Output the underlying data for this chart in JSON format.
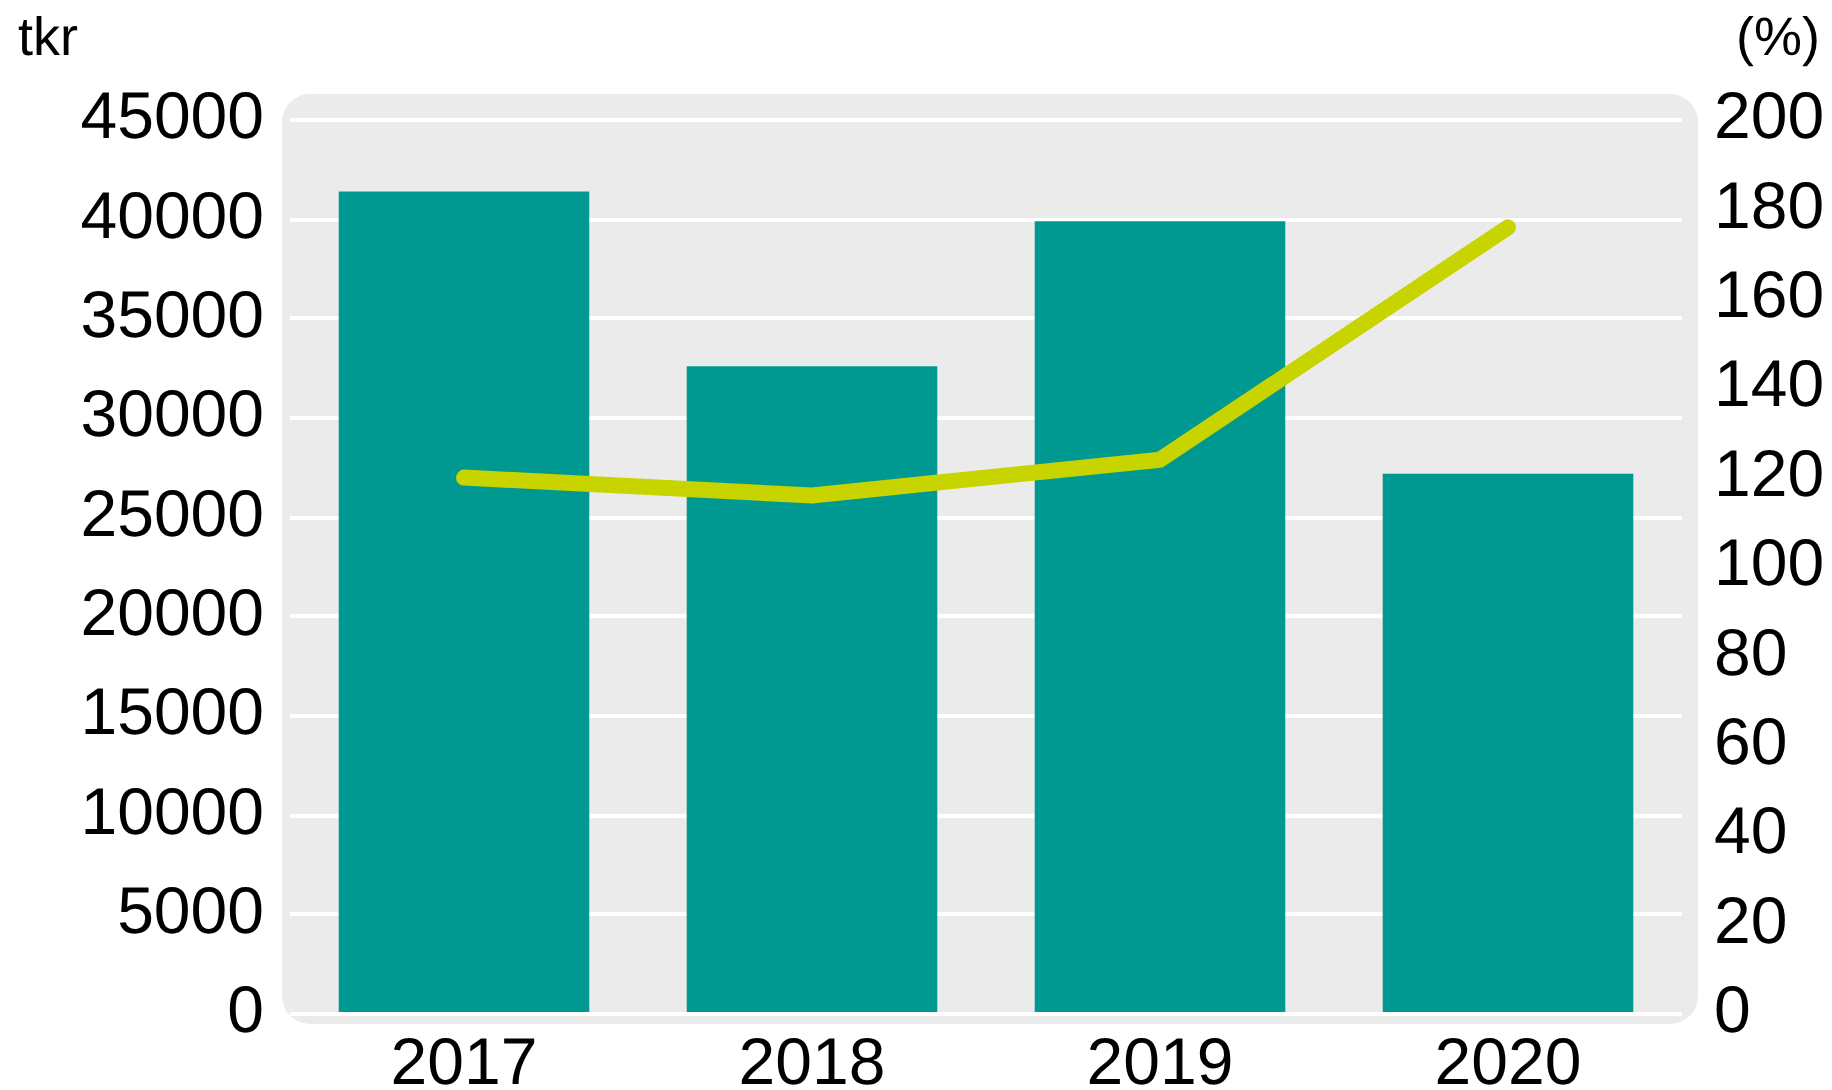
{
  "chart_data": {
    "type": "bar",
    "ylabel": "tkr",
    "y2label": "(%)",
    "categories": [
      "2017",
      "2018",
      "2019",
      "2020"
    ],
    "series": [
      {
        "color": "#009991",
        "values": [
          41400,
          32600,
          39900,
          27200
        ]
      },
      {
        "type": "line",
        "axis": "y2",
        "color": "#c8d400",
        "values": [
          120,
          116,
          124,
          176
        ]
      }
    ],
    "ylim": [
      0,
      45000
    ],
    "yticks": [
      0,
      5000,
      10000,
      15000,
      20000,
      25000,
      30000,
      35000,
      40000,
      45000
    ],
    "y2lim": [
      0,
      200
    ],
    "y2ticks": [
      0,
      20,
      40,
      60,
      80,
      100,
      120,
      140,
      160,
      180,
      200
    ],
    "grid": "y",
    "legend": false
  }
}
